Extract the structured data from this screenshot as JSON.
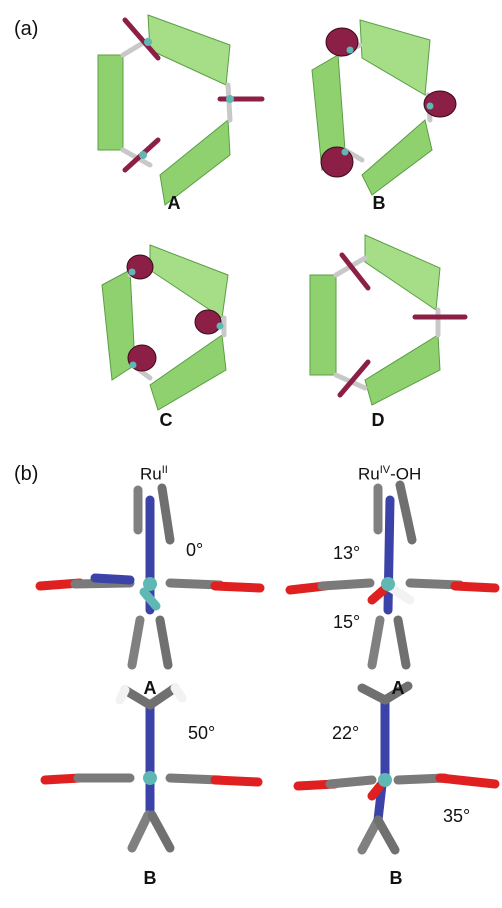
{
  "panel_a": {
    "label": "(a)",
    "captions": [
      "A",
      "B",
      "C",
      "D"
    ]
  },
  "panel_b": {
    "label": "(b)",
    "header_left": {
      "base": "Ru",
      "sup": "II",
      "suffix": ""
    },
    "header_right": {
      "base": "Ru",
      "sup": "IV",
      "suffix": "-OH"
    },
    "captions": [
      "A",
      "A",
      "B",
      "B"
    ],
    "angles": [
      "0°",
      "13°",
      "15°",
      "50°",
      "22°",
      "35°"
    ]
  },
  "colors": {
    "ribbon": "#8fd16f",
    "ribbon_edge": "#5a9e44",
    "ring": "#8b1f46",
    "linker": "#c8c8c8",
    "ruthenium": "#5fb8b4",
    "nitrogen": "#3b43a8",
    "oxygen": "#e02020",
    "carbon": "#7a7a7a",
    "hydrogen": "#f2f2f2"
  }
}
